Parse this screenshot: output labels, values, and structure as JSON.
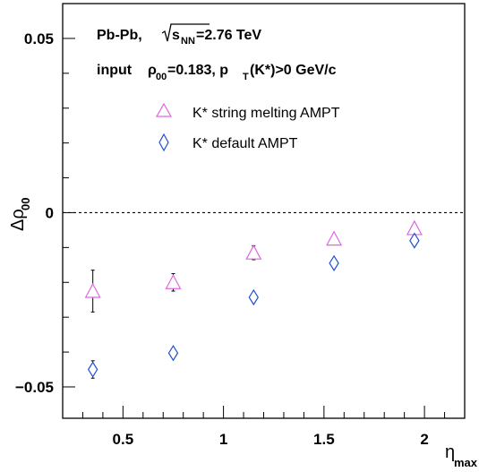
{
  "chart_data": {
    "type": "scatter",
    "annotations": {
      "system": "Pb-Pb,",
      "energy_sym": "s",
      "energy_sub": "NN",
      "energy_val": "=2.76 TeV",
      "input_prefix": "input",
      "rho": "ρ",
      "rho_sub": "00",
      "rho_val": "=0.183, p",
      "pt_sub": "T",
      "pt_rest": "(K*)>0 GeV/c"
    },
    "xlabel": "η",
    "xlabel_sub": "max",
    "ylabel": "Δρ",
    "ylabel_sub": "00",
    "xlim": [
      0.2,
      2.2
    ],
    "ylim": [
      -0.059,
      0.06
    ],
    "x_ticks": [
      {
        "value": 0.5,
        "label": "0.5"
      },
      {
        "value": 1,
        "label": "1"
      },
      {
        "value": 1.5,
        "label": "1.5"
      },
      {
        "value": 2,
        "label": "2"
      }
    ],
    "y_ticks": [
      {
        "value": 0.05,
        "label": "0.05"
      },
      {
        "value": 0,
        "label": "0"
      },
      {
        "value": -0.05,
        "label": "−0.05"
      }
    ],
    "zero_line": true,
    "legend_position": "top",
    "series": [
      {
        "name": "K* string melting AMPT",
        "marker": "triangle",
        "color": "#e066e0",
        "points": [
          {
            "x": 0.35,
            "y": -0.0225,
            "err": 0.006
          },
          {
            "x": 0.75,
            "y": -0.02,
            "err": 0.0025
          },
          {
            "x": 1.15,
            "y": -0.0115,
            "err": 0.002
          },
          {
            "x": 1.55,
            "y": -0.0075,
            "err": 0.001
          },
          {
            "x": 1.95,
            "y": -0.0045,
            "err": 0.0008
          }
        ]
      },
      {
        "name": "K* default AMPT",
        "marker": "diamond",
        "color": "#1f4fd0",
        "points": [
          {
            "x": 0.35,
            "y": -0.045,
            "err": 0.0025
          },
          {
            "x": 0.75,
            "y": -0.0403,
            "err": 0.001
          },
          {
            "x": 1.15,
            "y": -0.0243,
            "err": 0.0008
          },
          {
            "x": 1.55,
            "y": -0.0145,
            "err": 0.0008
          },
          {
            "x": 1.95,
            "y": -0.008,
            "err": 0.0008
          }
        ]
      }
    ]
  }
}
